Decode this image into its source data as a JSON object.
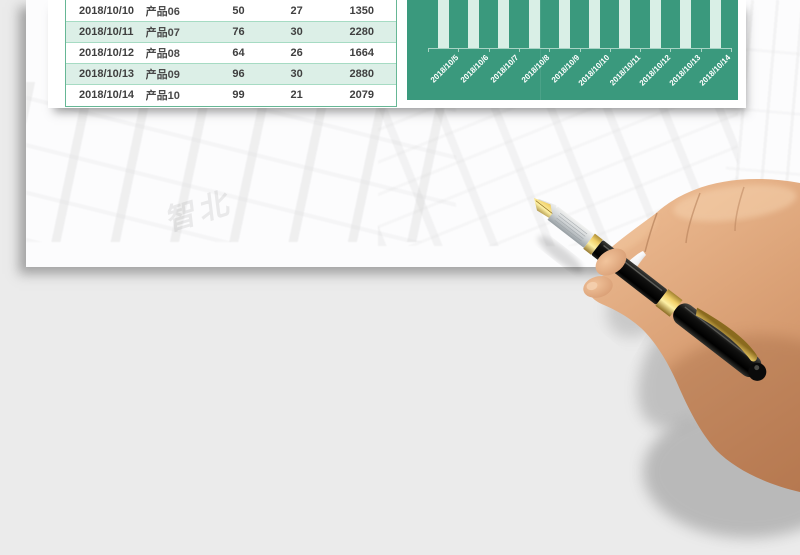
{
  "page": {
    "background_color": "#ebebeb",
    "paper_color": "#fcfcfd",
    "description": "Excel sales-report template preview sheet with a photographed hand holding a fountain pen"
  },
  "watermark": {
    "text": "智北"
  },
  "table": {
    "rows": [
      [
        "2018/10/10",
        "产品06",
        "50",
        "27",
        "1350"
      ],
      [
        "2018/10/11",
        "产品07",
        "76",
        "30",
        "2280"
      ],
      [
        "2018/10/12",
        "产品08",
        "64",
        "26",
        "1664"
      ],
      [
        "2018/10/13",
        "产品09",
        "96",
        "30",
        "2880"
      ],
      [
        "2018/10/14",
        "产品10",
        "99",
        "21",
        "2079"
      ]
    ],
    "alt_row_color": "#dcefe7",
    "border_color": "#66b795",
    "grid_color": "#a6dbc3",
    "text_color": "#3f3f3f"
  },
  "chart_data": {
    "type": "bar",
    "categories": [
      "2018/10/5",
      "2018/10/6",
      "2018/10/7",
      "2018/10/8",
      "2018/10/9",
      "2018/10/10",
      "2018/10/11",
      "2018/10/12",
      "2018/10/13",
      "2018/10/14"
    ],
    "values": [
      null,
      null,
      null,
      null,
      null,
      null,
      null,
      null,
      null,
      null
    ],
    "note": "bar tops are cropped by the screenshot edge; all 10 bars extend above the visible area down to the x-axis",
    "title": "",
    "xlabel": "",
    "ylabel": "",
    "legend": null,
    "layout": {
      "x_labels_rotated_deg": 45,
      "grid": false,
      "bars_cropped_top": true
    },
    "background_color": "#3a997d",
    "bar_color": "#d9efe6",
    "axis_color": "#a9d4c5",
    "label_color": "#ffffff"
  },
  "photo": {
    "subject": "hand holding fountain pen over paper",
    "pen_colors": {
      "nib": "#d8b24a",
      "grip": "#d6d9db",
      "barrel": "#0d0d0d",
      "bands": "#dcae3c"
    },
    "skin_color": "#dba277"
  }
}
